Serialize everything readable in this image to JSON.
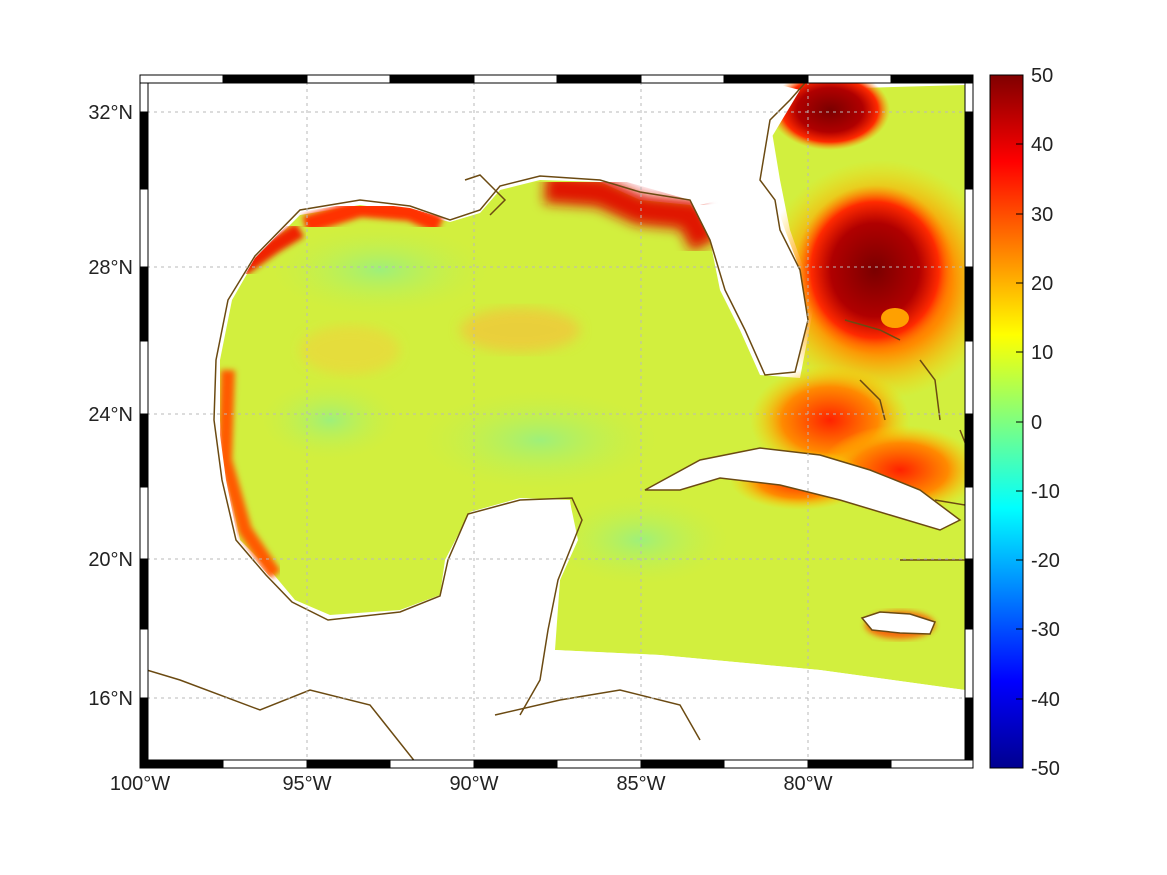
{
  "map": {
    "longitude_labels": [
      "100°W",
      "95°W",
      "90°W",
      "85°W",
      "80°W"
    ],
    "latitude_labels": [
      "32°N",
      "28°N",
      "24°N",
      "20°N",
      "16°N"
    ],
    "grid": true
  },
  "colorbar": {
    "ticks": [
      "50",
      "40",
      "30",
      "20",
      "10",
      "0",
      "-10",
      "-20",
      "-30",
      "-40",
      "-50"
    ],
    "range": [
      -50,
      50
    ],
    "colormap": "jet"
  },
  "colors": {
    "land_outline": "#6b4a12",
    "field_base": "#d8ef3a",
    "high": "#7a0000",
    "mid": "#ff3a00"
  }
}
